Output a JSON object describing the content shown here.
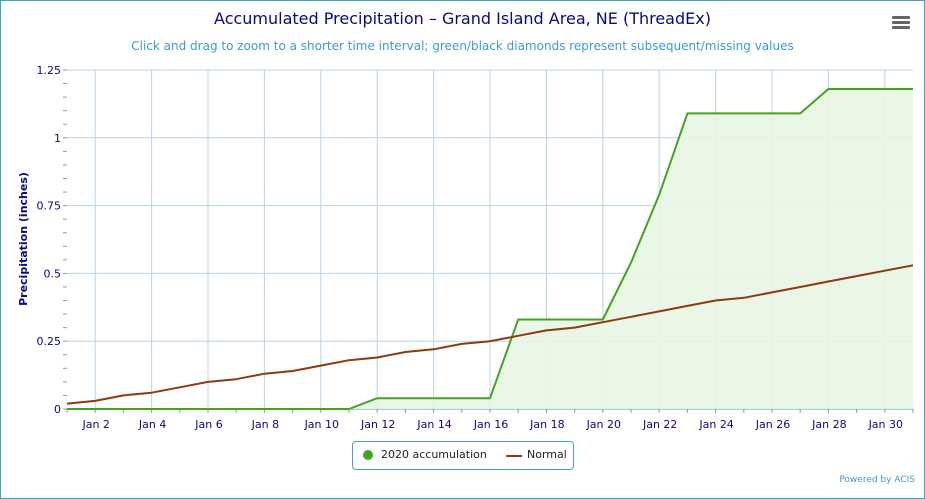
{
  "chart_data": {
    "type": "line",
    "title": "Accumulated Precipitation – Grand Island Area, NE (ThreadEx)",
    "subtitle": "Click and drag to zoom to a shorter time interval; green/black diamonds represent subsequent/missing values",
    "ylabel": "Precipitation (inches)",
    "xlabel": "",
    "ylim": [
      0,
      1.25
    ],
    "yticks": [
      "0",
      "0.25",
      "0.5",
      "0.75",
      "1",
      "1.25"
    ],
    "ytick_values": [
      0,
      0.25,
      0.5,
      0.75,
      1,
      1.25
    ],
    "xlim": [
      1,
      31
    ],
    "xticks": [
      "Jan 2",
      "Jan 4",
      "Jan 6",
      "Jan 8",
      "Jan 10",
      "Jan 12",
      "Jan 14",
      "Jan 16",
      "Jan 18",
      "Jan 20",
      "Jan 22",
      "Jan 24",
      "Jan 26",
      "Jan 28",
      "Jan 30"
    ],
    "xtick_values": [
      2,
      4,
      6,
      8,
      10,
      12,
      14,
      16,
      18,
      20,
      22,
      24,
      26,
      28,
      30
    ],
    "grid": true,
    "legend_position": "bottom-center",
    "x": [
      1,
      2,
      3,
      4,
      5,
      6,
      7,
      8,
      9,
      10,
      11,
      12,
      13,
      14,
      15,
      16,
      17,
      18,
      19,
      20,
      21,
      22,
      23,
      24,
      25,
      26,
      27,
      28,
      29,
      30,
      31
    ],
    "series": [
      {
        "name": "2020 accumulation",
        "color": "#44a324",
        "fill": "#e8f5e3",
        "values": [
          0,
          0,
          0,
          0,
          0,
          0,
          0,
          0,
          0,
          0,
          0,
          0.04,
          0.04,
          0.04,
          0.04,
          0.04,
          0.33,
          0.33,
          0.33,
          0.33,
          0.54,
          0.79,
          1.09,
          1.09,
          1.09,
          1.09,
          1.09,
          1.18,
          1.18,
          1.18,
          1.18
        ]
      },
      {
        "name": "Normal",
        "color": "#8b3a12",
        "values": [
          0.02,
          0.03,
          0.05,
          0.06,
          0.08,
          0.1,
          0.11,
          0.13,
          0.14,
          0.16,
          0.18,
          0.19,
          0.21,
          0.22,
          0.24,
          0.25,
          0.27,
          0.29,
          0.3,
          0.32,
          0.34,
          0.36,
          0.38,
          0.4,
          0.41,
          0.43,
          0.45,
          0.47,
          0.49,
          0.51,
          0.53
        ]
      }
    ]
  },
  "legend": {
    "items": [
      "2020 accumulation",
      "Normal"
    ]
  },
  "credits": "Powered by ACIS",
  "colors": {
    "title": "#0a0a7a",
    "subtitle": "#3d9ad1",
    "border": "#4a9cc9",
    "grid": "#b8d4e6",
    "accum": "#44a324",
    "normal": "#8b3a12"
  },
  "icons": {
    "menu": "hamburger-menu-icon"
  }
}
